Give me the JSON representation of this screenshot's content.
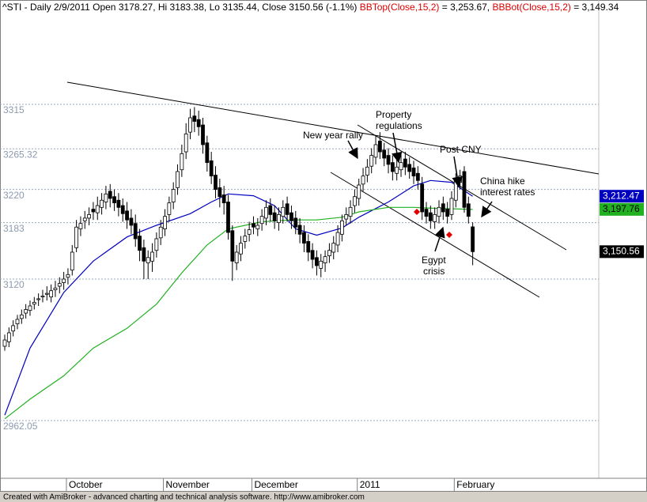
{
  "chart_data": {
    "type": "candlestick",
    "header": [
      {
        "text": "^STI - Daily 2/9/2011 Open 3178.27, Hi 3183.38, Lo 3135.44, Close 3150.56 (-1.1%) ",
        "color": "#000000"
      },
      {
        "text": "BBTop(Close,15,2)",
        "color": "#e00000"
      },
      {
        "text": " = 3,253.67, ",
        "color": "#000000"
      },
      {
        "text": "BBBot(Close,15,2)",
        "color": "#e00000"
      },
      {
        "text": " = 3,149.34",
        "color": "#000000"
      }
    ],
    "categories": [
      null,
      null,
      null,
      null,
      null,
      null,
      null,
      null,
      null,
      null,
      null,
      null,
      null,
      null,
      null,
      "October",
      null,
      null,
      null,
      null,
      null,
      null,
      null,
      null,
      null,
      null,
      null,
      null,
      null,
      null,
      null,
      null,
      null,
      null,
      null,
      null,
      null,
      null,
      "November",
      null,
      null,
      null,
      null,
      null,
      null,
      null,
      null,
      null,
      null,
      null,
      null,
      null,
      null,
      null,
      null,
      null,
      null,
      null,
      null,
      "December",
      null,
      null,
      null,
      null,
      null,
      null,
      null,
      null,
      null,
      null,
      null,
      null,
      null,
      null,
      null,
      null,
      null,
      null,
      null,
      null,
      null,
      null,
      null,
      null,
      "2011",
      null,
      null,
      null,
      null,
      null,
      null,
      null,
      null,
      null,
      null,
      null,
      null,
      null,
      null,
      null,
      null,
      null,
      null,
      null,
      null,
      null,
      null,
      "February",
      null,
      null,
      null,
      null
    ],
    "open": [
      3045,
      3050,
      3062,
      3070,
      3076,
      3082,
      3085,
      3092,
      3097,
      3100,
      3103,
      3100,
      3108,
      3112,
      3116,
      3122,
      3130,
      3155,
      3176,
      3185,
      3188,
      3198,
      3194,
      3200,
      3206,
      3218,
      3212,
      3208,
      3202,
      3196,
      3188,
      3182,
      3168,
      3155,
      3138,
      3140,
      3152,
      3166,
      3176,
      3192,
      3206,
      3222,
      3242,
      3262,
      3284,
      3302,
      3298,
      3292,
      3272,
      3252,
      3236,
      3222,
      3214,
      3206,
      3174,
      3138,
      3148,
      3162,
      3170,
      3182,
      3176,
      3182,
      3188,
      3202,
      3194,
      3183,
      3190,
      3204,
      3194,
      3188,
      3180,
      3172,
      3162,
      3152,
      3144,
      3132,
      3138,
      3146,
      3150,
      3158,
      3170,
      3187,
      3190,
      3202,
      3210,
      3226,
      3236,
      3246,
      3256,
      3274,
      3264,
      3258,
      3250,
      3238,
      3242,
      3254,
      3248,
      3244,
      3238,
      3226,
      3198,
      3194,
      3184,
      3190,
      3204,
      3198,
      3192,
      3208,
      3228,
      3240,
      3204,
      3178.27
    ],
    "high": [
      3058,
      3066,
      3074,
      3080,
      3086,
      3092,
      3096,
      3100,
      3104,
      3108,
      3112,
      3114,
      3118,
      3122,
      3128,
      3132,
      3158,
      3186,
      3190,
      3196,
      3200,
      3206,
      3212,
      3216,
      3224,
      3226,
      3220,
      3216,
      3210,
      3206,
      3198,
      3192,
      3176,
      3164,
      3152,
      3160,
      3172,
      3186,
      3198,
      3212,
      3228,
      3248,
      3270,
      3294,
      3310,
      3312,
      3308,
      3300,
      3280,
      3262,
      3246,
      3232,
      3224,
      3214,
      3180,
      3158,
      3168,
      3176,
      3184,
      3190,
      3188,
      3198,
      3208,
      3210,
      3202,
      3200,
      3208,
      3212,
      3202,
      3196,
      3188,
      3180,
      3170,
      3160,
      3152,
      3148,
      3152,
      3160,
      3168,
      3180,
      3192,
      3200,
      3208,
      3220,
      3232,
      3244,
      3254,
      3266,
      3280,
      3284,
      3272,
      3266,
      3258,
      3254,
      3260,
      3262,
      3256,
      3252,
      3246,
      3234,
      3206,
      3202,
      3200,
      3208,
      3212,
      3206,
      3218,
      3238,
      3242,
      3246,
      3212,
      3183.38
    ],
    "low": [
      3040,
      3044,
      3056,
      3064,
      3070,
      3076,
      3079,
      3086,
      3090,
      3094,
      3096,
      3094,
      3100,
      3104,
      3108,
      3114,
      3124,
      3150,
      3168,
      3176,
      3180,
      3186,
      3186,
      3192,
      3198,
      3200,
      3196,
      3190,
      3184,
      3176,
      3170,
      3156,
      3140,
      3120,
      3120,
      3128,
      3144,
      3158,
      3168,
      3184,
      3198,
      3214,
      3234,
      3254,
      3276,
      3284,
      3280,
      3260,
      3240,
      3226,
      3210,
      3200,
      3192,
      3164,
      3118,
      3130,
      3140,
      3154,
      3162,
      3170,
      3168,
      3174,
      3180,
      3184,
      3176,
      3174,
      3182,
      3184,
      3176,
      3170,
      3160,
      3150,
      3140,
      3132,
      3124,
      3122,
      3128,
      3138,
      3142,
      3150,
      3162,
      3180,
      3182,
      3194,
      3202,
      3218,
      3228,
      3238,
      3248,
      3254,
      3246,
      3238,
      3230,
      3230,
      3234,
      3236,
      3232,
      3226,
      3220,
      3186,
      3182,
      3176,
      3176,
      3182,
      3186,
      3182,
      3186,
      3200,
      3220,
      3194,
      3182,
      3135.44
    ],
    "close": [
      3052,
      3060,
      3068,
      3075,
      3080,
      3086,
      3090,
      3094,
      3098,
      3101,
      3104,
      3107,
      3110,
      3115,
      3120,
      3125,
      3150,
      3178,
      3182,
      3188,
      3192,
      3195,
      3202,
      3208,
      3215,
      3210,
      3205,
      3200,
      3193,
      3186,
      3180,
      3165,
      3152,
      3140,
      3144,
      3150,
      3165,
      3178,
      3190,
      3205,
      3220,
      3240,
      3260,
      3282,
      3300,
      3296,
      3290,
      3270,
      3250,
      3235,
      3220,
      3212,
      3205,
      3172,
      3140,
      3150,
      3160,
      3168,
      3175,
      3178,
      3180,
      3190,
      3200,
      3192,
      3185,
      3192,
      3200,
      3192,
      3185,
      3178,
      3170,
      3160,
      3150,
      3142,
      3135,
      3140,
      3145,
      3152,
      3160,
      3172,
      3185,
      3192,
      3200,
      3212,
      3225,
      3235,
      3245,
      3258,
      3270,
      3262,
      3255,
      3248,
      3240,
      3245,
      3250,
      3245,
      3240,
      3235,
      3230,
      3195,
      3190,
      3185,
      3192,
      3200,
      3195,
      3190,
      3210,
      3230,
      3235,
      3200,
      3190,
      3150.56
    ],
    "close_last_label": "3,150.56",
    "series": [
      {
        "color": "#0000c0",
        "x": [
          0,
          6,
          14,
          21,
          29,
          36,
          44,
          49,
          53,
          59,
          64,
          69,
          74,
          80,
          84,
          91,
          97,
          101,
          106,
          111
        ],
        "values": [
          2968,
          3043,
          3105,
          3140,
          3167,
          3180,
          3193,
          3206,
          3215,
          3213,
          3202,
          3176,
          3169,
          3177,
          3189,
          3206,
          3224,
          3230,
          3228,
          3212.47
        ],
        "last_label": "3,212.47"
      },
      {
        "color": "#20b020",
        "x": [
          0,
          6,
          14,
          21,
          29,
          36,
          42,
          48,
          53,
          61,
          68,
          74,
          80,
          84,
          91,
          97,
          102,
          111
        ],
        "values": [
          2964,
          2986,
          3012,
          3043,
          3065,
          3092,
          3127,
          3158,
          3176,
          3184,
          3186,
          3186,
          3189,
          3195,
          3200,
          3200,
          3199,
          3197.76
        ],
        "last_label": "3,197.76"
      }
    ],
    "ylim": [
      2897.63,
      3431.47
    ],
    "yticks": [
      3315,
      3265.32,
      3220,
      3183,
      3120,
      2962.05
    ],
    "grid": true,
    "annotations": [
      {
        "lines": [
          "New year rally"
        ]
      },
      {
        "lines": [
          "Property",
          "regulations"
        ]
      },
      {
        "lines": [
          "Post CNY"
        ]
      },
      {
        "lines": [
          "China hike",
          "interest rates"
        ]
      },
      {
        "lines": [
          "Egypt",
          "crisis"
        ]
      }
    ]
  },
  "footer": "Created with AmiBroker - advanced charting and technical analysis software. http://www.amibroker.com"
}
